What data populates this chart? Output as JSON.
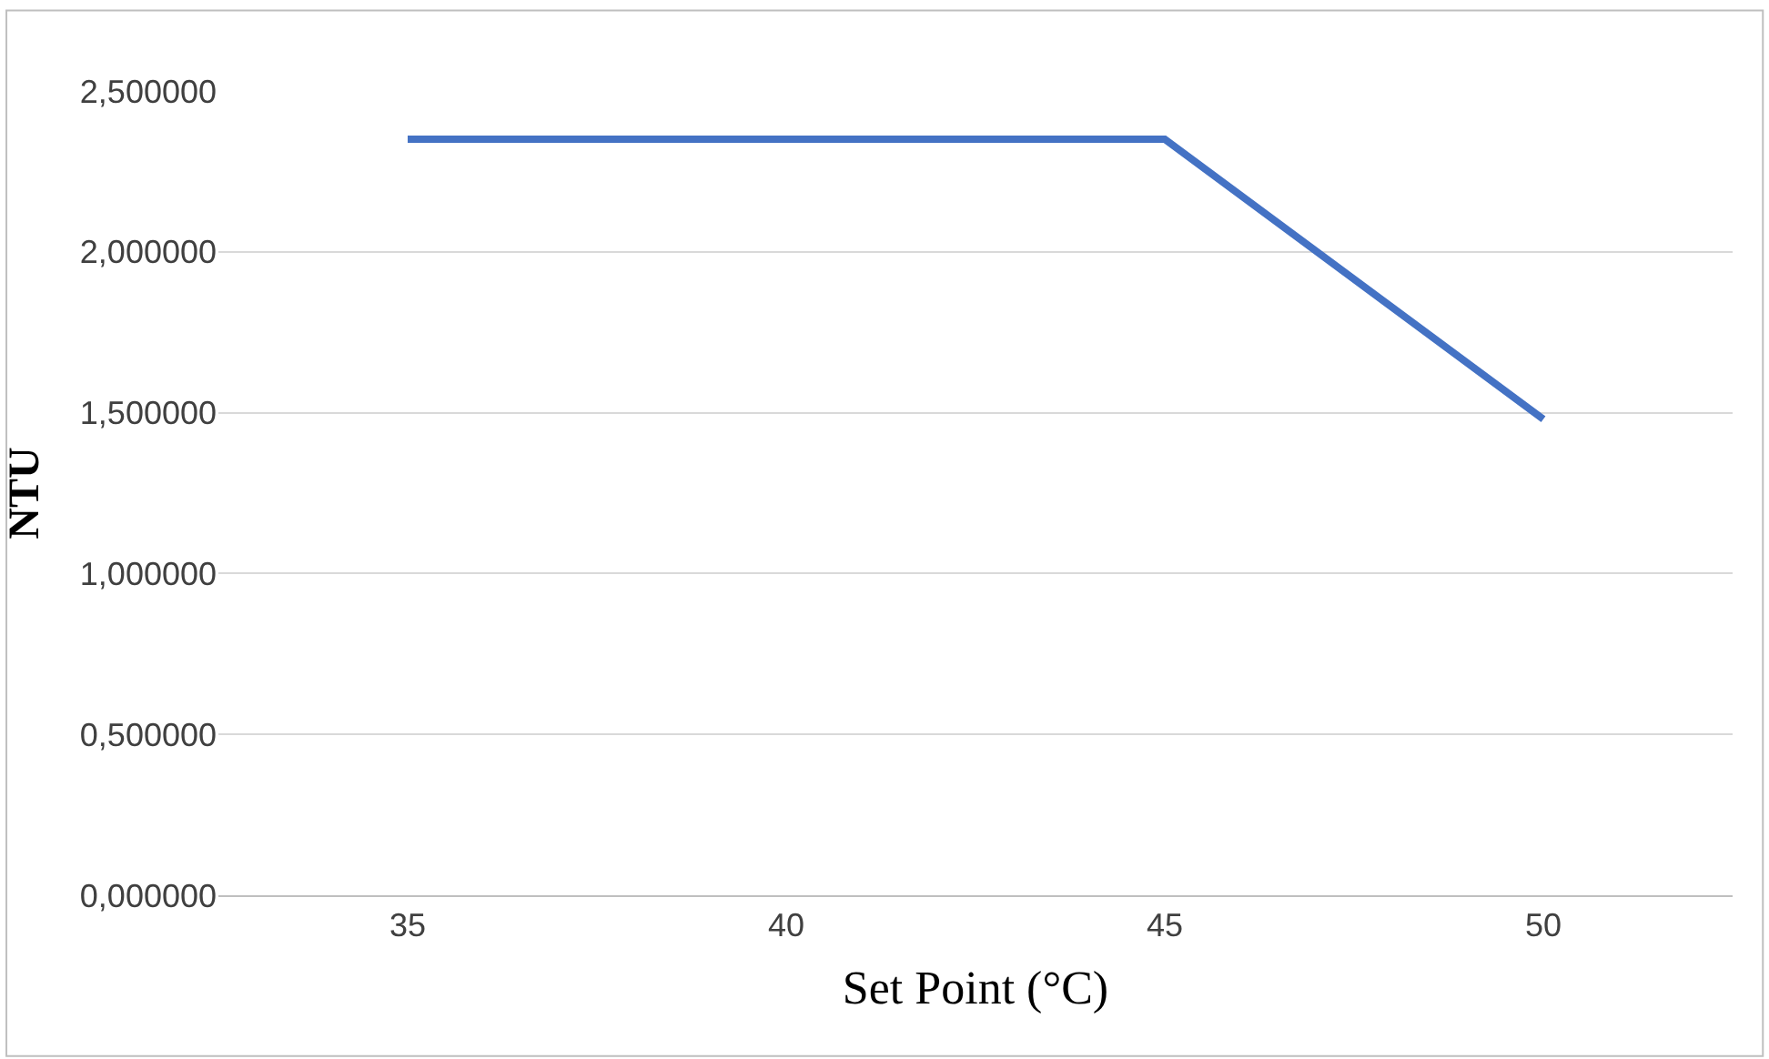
{
  "chart_data": {
    "type": "line",
    "xlabel": "Set Point (°C)",
    "ylabel": "NTU",
    "categories": [
      "35",
      "40",
      "45",
      "50"
    ],
    "series": [
      {
        "color": "#4472c4",
        "values": [
          2.35,
          2.35,
          2.35,
          1.48
        ]
      }
    ],
    "ylim": [
      0,
      2.5
    ],
    "yticks": [
      {
        "value": 0,
        "label": "0,000000"
      },
      {
        "value": 0.5,
        "label": "0,500000"
      },
      {
        "value": 1,
        "label": "1,000000"
      },
      {
        "value": 1.5,
        "label": "1,500000"
      },
      {
        "value": 2,
        "label": "2,000000"
      },
      {
        "value": 2.5,
        "label": "2,500000"
      }
    ],
    "grid": "y",
    "legend": false,
    "marker": "none",
    "line_style": "solid"
  }
}
